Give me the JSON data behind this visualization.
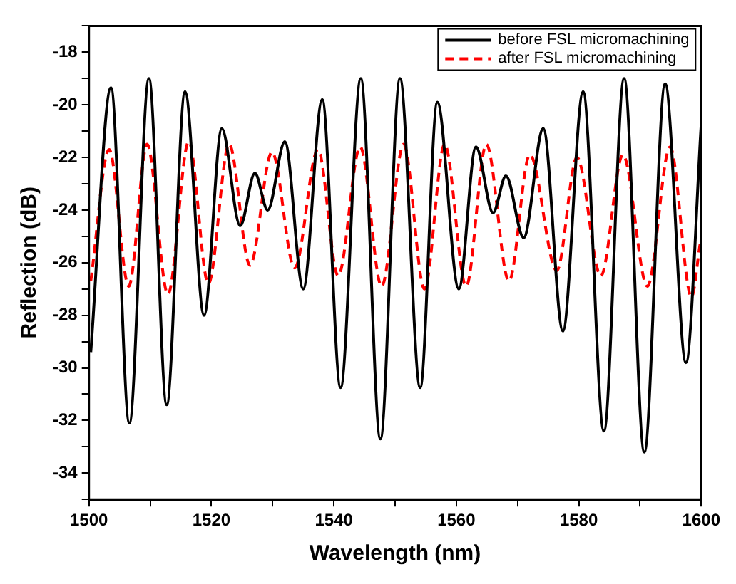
{
  "chart_data": {
    "type": "line",
    "xlabel": "Wavelength (nm)",
    "ylabel": "Reflection (dB)",
    "xlim": [
      1500,
      1600
    ],
    "ylim": [
      -35,
      -17
    ],
    "xticks": [
      1500,
      {
        "value": 1510,
        "label": null
      },
      1520,
      {
        "value": 1530,
        "label": null
      },
      1540,
      {
        "value": 1550,
        "label": null
      },
      1560,
      {
        "value": 1570,
        "label": null
      },
      1580,
      {
        "value": 1590,
        "label": null
      },
      1600
    ],
    "yticks": [
      {
        "value": -35,
        "label": null
      },
      -34,
      {
        "value": -33,
        "label": null
      },
      -32,
      {
        "value": -31,
        "label": null
      },
      -30,
      {
        "value": -29,
        "label": null
      },
      -28,
      {
        "value": -27,
        "label": null
      },
      -26,
      {
        "value": -25,
        "label": null
      },
      -24,
      {
        "value": -23,
        "label": null
      },
      -22,
      {
        "value": -21,
        "label": null
      },
      -20,
      {
        "value": -19,
        "label": null
      },
      -18,
      {
        "value": -17,
        "label": null
      }
    ],
    "grid": false,
    "legend": "top right",
    "marker": "none",
    "series": [
      {
        "name": "before FSL micromachining",
        "color": "#000000",
        "line_style": "solid",
        "x": [
          1500.3,
          1503.6,
          1506.6,
          1509.8,
          1512.7,
          1515.7,
          1518.8,
          1521.7,
          1524.7,
          1527.1,
          1529.2,
          1532.0,
          1535.0,
          1538.1,
          1541.1,
          1544.4,
          1547.6,
          1550.8,
          1554.1,
          1556.9,
          1560.4,
          1563.2,
          1566.0,
          1568.1,
          1571.0,
          1574.2,
          1577.4,
          1580.7,
          1584.1,
          1587.4,
          1590.7,
          1594.1,
          1597.5,
          1600
        ],
        "values": [
          -29.4,
          -19.35,
          -32.1,
          -19.0,
          -31.4,
          -19.5,
          -28.0,
          -20.9,
          -24.6,
          -22.6,
          -24.0,
          -21.4,
          -27.0,
          -19.8,
          -30.75,
          -19.0,
          -32.7,
          -19.0,
          -30.75,
          -19.9,
          -27.0,
          -21.6,
          -24.1,
          -22.7,
          -25.05,
          -20.9,
          -28.6,
          -19.5,
          -32.4,
          -19.0,
          -33.2,
          -19.2,
          -29.8,
          -20.7
        ]
      },
      {
        "name": "after FSL micromachining",
        "color": "#ff0000",
        "line_style": "dashed",
        "x": [
          1500.3,
          1503.3,
          1506.5,
          1509.5,
          1512.9,
          1516.3,
          1519.5,
          1522.9,
          1526.3,
          1529.9,
          1533.6,
          1537.4,
          1540.7,
          1544.3,
          1547.8,
          1551.4,
          1554.8,
          1558.1,
          1561.6,
          1564.9,
          1568.6,
          1572.0,
          1576.4,
          1579.7,
          1583.6,
          1587.2,
          1591.2,
          1594.9,
          1598.4,
          1599.8
        ],
        "values": [
          -26.7,
          -21.7,
          -26.9,
          -21.5,
          -27.2,
          -21.4,
          -26.8,
          -21.5,
          -26.1,
          -21.8,
          -26.2,
          -21.7,
          -26.5,
          -21.6,
          -26.9,
          -21.5,
          -27.0,
          -21.5,
          -26.9,
          -21.5,
          -26.7,
          -21.9,
          -26.3,
          -22.0,
          -26.5,
          -21.9,
          -26.9,
          -21.6,
          -27.3,
          -25.3
        ]
      }
    ]
  }
}
